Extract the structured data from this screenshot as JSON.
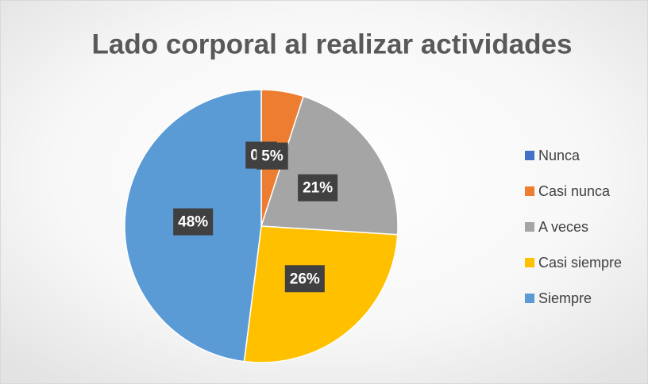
{
  "chart_data": {
    "type": "pie",
    "title": "Lado corporal al realizar actividades",
    "categories": [
      "Nunca",
      "Casi nunca",
      "A veces",
      "Casi siempre",
      "Siempre"
    ],
    "values": [
      0,
      5,
      21,
      26,
      48
    ],
    "value_labels": [
      "0%",
      "5%",
      "21%",
      "26%",
      "48%"
    ],
    "colors": [
      "#4472c4",
      "#ed7d31",
      "#a5a5a5",
      "#ffc000",
      "#5b9bd5"
    ],
    "legend": "right"
  }
}
